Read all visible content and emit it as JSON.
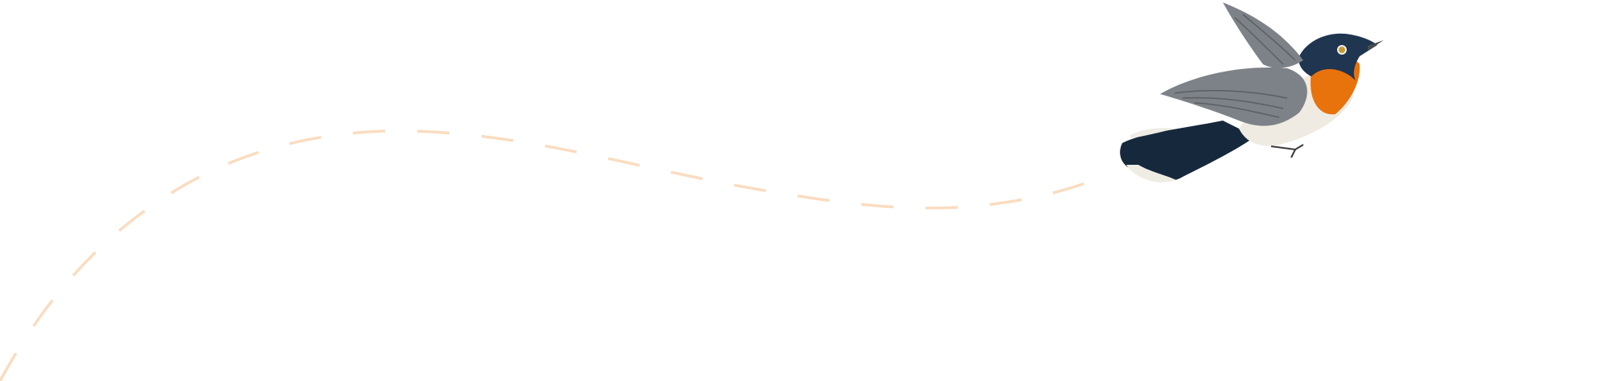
{
  "illustration": {
    "subject": "bird-in-flight",
    "path_style": "dashed",
    "colors": {
      "background": "#ffffff",
      "flight_path": "#fadcc0",
      "bird_throat": "#e8720c",
      "bird_head": "#1f3550",
      "bird_wing": "#7d8288",
      "bird_belly": "#efebe2",
      "bird_tail": "#16283c"
    }
  }
}
